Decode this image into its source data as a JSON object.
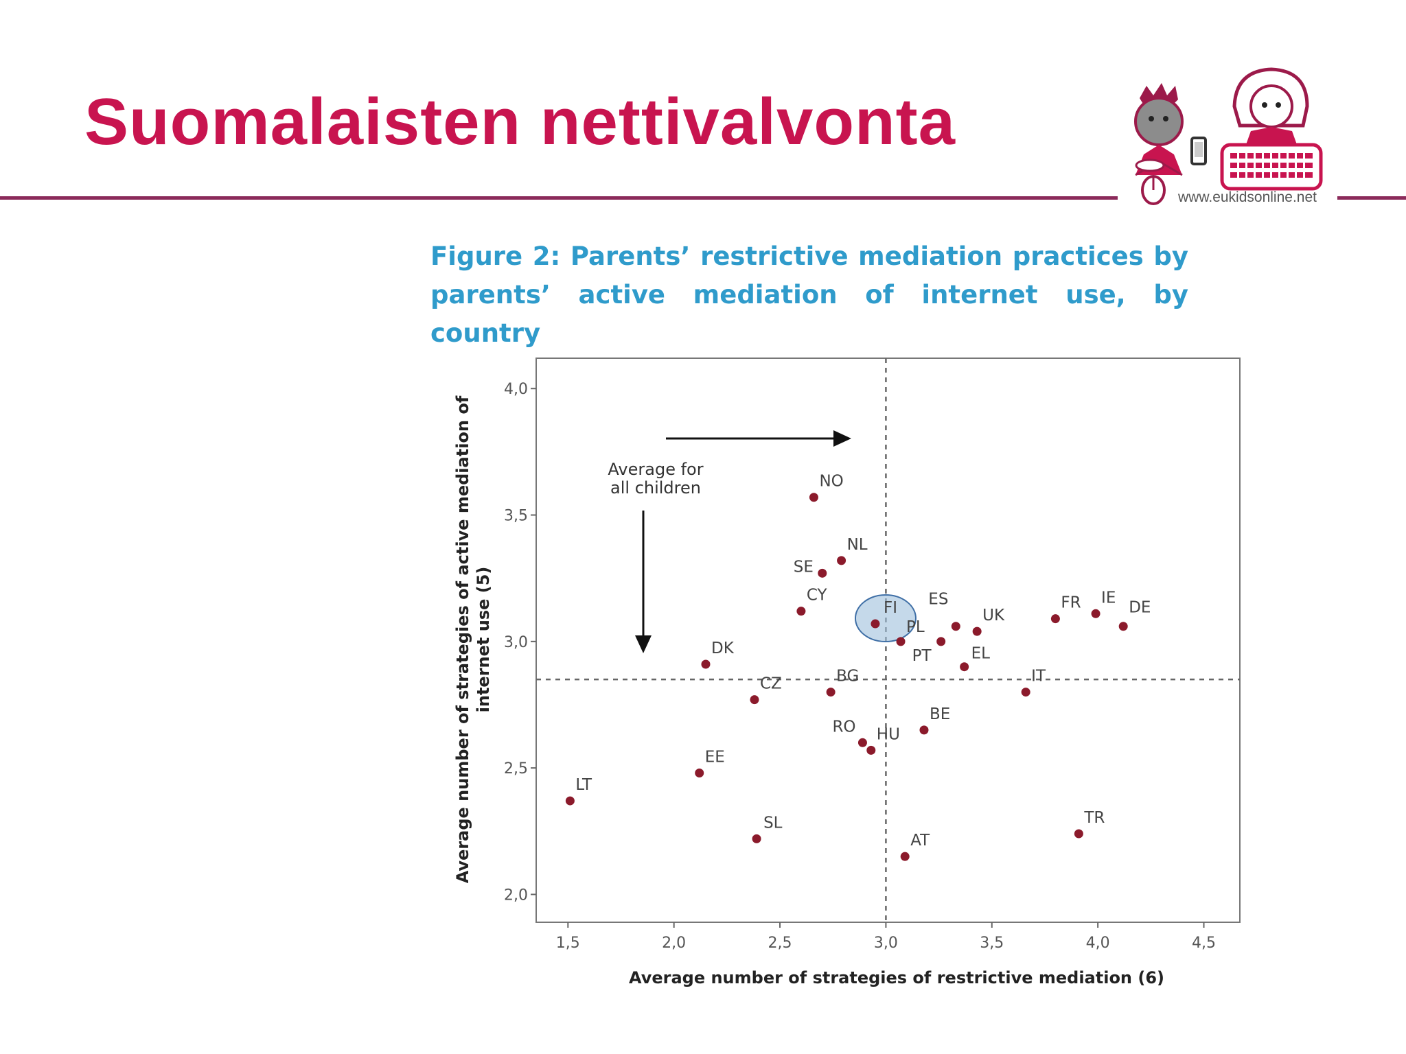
{
  "slide": {
    "title": "Suomalaisten nettivalvonta",
    "logo_url": "www.eukidsonline.net",
    "accent_color": "#c8144f",
    "rule_color": "#8b2a5a"
  },
  "figure": {
    "caption": "Figure 2: Parents’ restrictive mediation practices by parents’ active mediation of internet use, by country",
    "caption_color": "#2f9bcb"
  },
  "chart_data": {
    "type": "scatter",
    "xlabel": "Average number of strategies of restrictive mediation (6)",
    "ylabel_lines": [
      "Average number of strategies of active mediation of",
      "internet use (5)"
    ],
    "xlim": [
      1.35,
      4.67
    ],
    "ylim": [
      1.89,
      4.12
    ],
    "xticks": [
      1.5,
      2.0,
      2.5,
      3.0,
      3.5,
      4.0,
      4.5
    ],
    "xtick_labels": [
      "1,5",
      "2,0",
      "2,5",
      "3,0",
      "3,5",
      "4,0",
      "4,5"
    ],
    "yticks": [
      2.0,
      2.5,
      3.0,
      3.5,
      4.0
    ],
    "ytick_labels": [
      "2,0",
      "2,5",
      "3,0",
      "3,5",
      "4,0"
    ],
    "grid": false,
    "reference_lines": {
      "x": 3.0,
      "y": 2.85
    },
    "annotation": {
      "lines": [
        "Average for",
        "all children"
      ]
    },
    "highlight": "FI",
    "point_color": "#8b1a2b",
    "highlight_color": "#9fbfdc",
    "points": [
      {
        "label": "NO",
        "x": 2.66,
        "y": 3.57
      },
      {
        "label": "NL",
        "x": 2.79,
        "y": 3.32
      },
      {
        "label": "SE",
        "x": 2.7,
        "y": 3.27
      },
      {
        "label": "CY",
        "x": 2.6,
        "y": 3.12
      },
      {
        "label": "FI",
        "x": 2.95,
        "y": 3.07
      },
      {
        "label": "ES",
        "x": 3.33,
        "y": 3.06
      },
      {
        "label": "UK",
        "x": 3.43,
        "y": 3.04
      },
      {
        "label": "PL",
        "x": 3.07,
        "y": 3.0
      },
      {
        "label": "PT",
        "x": 3.26,
        "y": 3.0
      },
      {
        "label": "EL",
        "x": 3.37,
        "y": 2.9
      },
      {
        "label": "FR",
        "x": 3.8,
        "y": 3.09
      },
      {
        "label": "IE",
        "x": 3.99,
        "y": 3.11
      },
      {
        "label": "DE",
        "x": 4.12,
        "y": 3.06
      },
      {
        "label": "IT",
        "x": 3.66,
        "y": 2.8
      },
      {
        "label": "DK",
        "x": 2.15,
        "y": 2.91
      },
      {
        "label": "CZ",
        "x": 2.38,
        "y": 2.77
      },
      {
        "label": "BG",
        "x": 2.74,
        "y": 2.8
      },
      {
        "label": "BE",
        "x": 3.18,
        "y": 2.65
      },
      {
        "label": "RO",
        "x": 2.89,
        "y": 2.6
      },
      {
        "label": "HU",
        "x": 2.93,
        "y": 2.57
      },
      {
        "label": "EE",
        "x": 2.12,
        "y": 2.48
      },
      {
        "label": "LT",
        "x": 1.51,
        "y": 2.37
      },
      {
        "label": "SL",
        "x": 2.39,
        "y": 2.22
      },
      {
        "label": "AT",
        "x": 3.09,
        "y": 2.15
      },
      {
        "label": "TR",
        "x": 3.91,
        "y": 2.24
      }
    ]
  }
}
